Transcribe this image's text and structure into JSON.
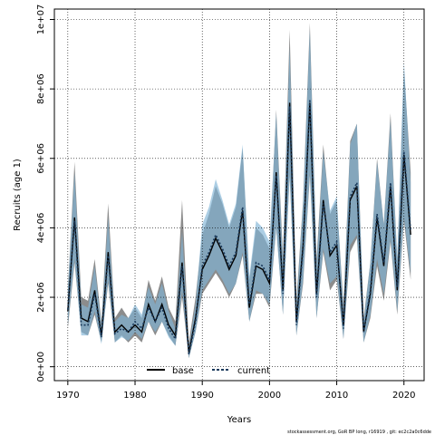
{
  "chart_data": {
    "type": "line",
    "title": "",
    "xlabel": "Years",
    "ylabel": "Recruits (age 1)",
    "xlim": [
      1968,
      2023
    ],
    "ylim": [
      -400000,
      10300000
    ],
    "x_ticks": [
      1970,
      1980,
      1990,
      2000,
      2010,
      2020
    ],
    "y_ticks": [
      {
        "value": 0,
        "label": "0e+00"
      },
      {
        "value": 2000000,
        "label": "2e+06"
      },
      {
        "value": 4000000,
        "label": "4e+06"
      },
      {
        "value": 6000000,
        "label": "6e+06"
      },
      {
        "value": 8000000,
        "label": "8e+06"
      },
      {
        "value": 10000000,
        "label": "1e+07"
      }
    ],
    "grid": true,
    "legend_position": "bottom-left",
    "x": [
      1970,
      1971,
      1972,
      1973,
      1974,
      1975,
      1976,
      1977,
      1978,
      1979,
      1980,
      1981,
      1982,
      1983,
      1984,
      1985,
      1986,
      1987,
      1988,
      1989,
      1990,
      1991,
      1992,
      1993,
      1994,
      1995,
      1996,
      1997,
      1998,
      1999,
      2000,
      2001,
      2002,
      2003,
      2004,
      2005,
      2006,
      2007,
      2008,
      2009,
      2010,
      2011,
      2012,
      2013,
      2014,
      2015,
      2016,
      2017,
      2018,
      2019,
      2020,
      2021
    ],
    "series": [
      {
        "name": "base",
        "color": "#7a7a7a",
        "band_color": "#808080",
        "values": [
          1600000,
          4300000,
          1400000,
          1300000,
          2200000,
          900000,
          3300000,
          1000000,
          1200000,
          1000000,
          1200000,
          1000000,
          1800000,
          1300000,
          1800000,
          1200000,
          900000,
          3000000,
          400000,
          1400000,
          2800000,
          3200000,
          3700000,
          3300000,
          2800000,
          3200000,
          4500000,
          1700000,
          2900000,
          2800000,
          2400000,
          5600000,
          2200000,
          7600000,
          1300000,
          3500000,
          7600000,
          2100000,
          4800000,
          3200000,
          3500000,
          1200000,
          4800000,
          5200000,
          1000000,
          2100000,
          4300000,
          2900000,
          5200000,
          2200000,
          6100000,
          3800000
        ],
        "lower": [
          1100000,
          3000000,
          1000000,
          900000,
          1500000,
          700000,
          2400000,
          700000,
          900000,
          700000,
          900000,
          700000,
          1300000,
          900000,
          1300000,
          900000,
          600000,
          2000000,
          250000,
          1000000,
          2100000,
          2400000,
          2700000,
          2400000,
          2000000,
          2400000,
          3200000,
          1300000,
          2100000,
          2100000,
          1700000,
          4000000,
          1500000,
          5500000,
          900000,
          2400000,
          5500000,
          1400000,
          3300000,
          2200000,
          2500000,
          800000,
          3300000,
          3700000,
          700000,
          1400000,
          2900000,
          1900000,
          3600000,
          1500000,
          4200000,
          2500000
        ],
        "upper": [
          2200000,
          5900000,
          2000000,
          1900000,
          3100000,
          1300000,
          4700000,
          1400000,
          1700000,
          1400000,
          1700000,
          1400000,
          2500000,
          1900000,
          2600000,
          1700000,
          1300000,
          4800000,
          700000,
          2000000,
          3800000,
          4400000,
          5200000,
          4700000,
          4000000,
          4600000,
          6300000,
          2500000,
          4000000,
          3800000,
          3400000,
          7400000,
          3200000,
          9700000,
          1900000,
          4800000,
          9900000,
          3100000,
          6400000,
          4400000,
          4800000,
          1800000,
          6500000,
          7000000,
          1400000,
          3000000,
          6000000,
          4100000,
          7300000,
          3100000,
          8600000,
          5600000
        ]
      },
      {
        "name": "current",
        "color": "#1a3a5c",
        "band_color": "#7fb3d5",
        "values": [
          1650000,
          4200000,
          1200000,
          1200000,
          2100000,
          850000,
          3200000,
          950000,
          1100000,
          1000000,
          1300000,
          1100000,
          1700000,
          1300000,
          1700000,
          1100000,
          800000,
          2900000,
          350000,
          1300000,
          2900000,
          3300000,
          3800000,
          3400000,
          2900000,
          3300000,
          4600000,
          1800000,
          3000000,
          2900000,
          2500000,
          5500000,
          2100000,
          7500000,
          1200000,
          3400000,
          7700000,
          2000000,
          4700000,
          3300000,
          3600000,
          1100000,
          4900000,
          5300000,
          1000000,
          2200000,
          4400000,
          3000000,
          5300000,
          2300000,
          6200000,
          3900000
        ],
        "lower": [
          1200000,
          3100000,
          900000,
          900000,
          1600000,
          650000,
          2500000,
          700000,
          850000,
          750000,
          1000000,
          800000,
          1300000,
          1000000,
          1300000,
          850000,
          600000,
          2200000,
          250000,
          1000000,
          2200000,
          2500000,
          2800000,
          2500000,
          2100000,
          2400000,
          3300000,
          1300000,
          2200000,
          2100000,
          1800000,
          4000000,
          1500000,
          5500000,
          900000,
          2500000,
          5600000,
          1400000,
          3400000,
          2400000,
          2600000,
          800000,
          3500000,
          3800000,
          700000,
          1500000,
          3100000,
          2100000,
          3700000,
          1600000,
          4300000,
          2700000
        ],
        "upper": [
          2200000,
          5600000,
          1800000,
          1700000,
          2900000,
          1200000,
          4300000,
          1300000,
          1500000,
          1400000,
          1800000,
          1500000,
          2300000,
          1800000,
          2400000,
          1600000,
          1100000,
          3900000,
          550000,
          1800000,
          4100000,
          4600000,
          5400000,
          4800000,
          4100000,
          4700000,
          6400000,
          2600000,
          4200000,
          4000000,
          3600000,
          7300000,
          3000000,
          9200000,
          1700000,
          4700000,
          9700000,
          2900000,
          6200000,
          4500000,
          4900000,
          1600000,
          6400000,
          7000000,
          1300000,
          3000000,
          5900000,
          4100000,
          7100000,
          3100000,
          8800000,
          5300000
        ]
      }
    ],
    "footer": "stockassessment.org, GoR BP long, r16919 , git: ec2c2a0c6dde"
  }
}
